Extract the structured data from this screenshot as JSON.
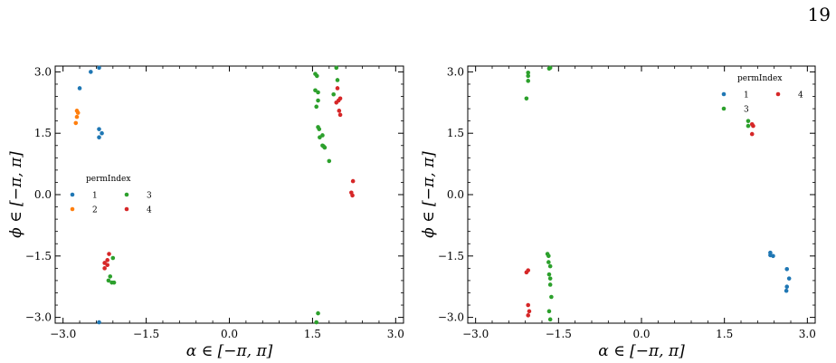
{
  "page": {
    "number": "19"
  },
  "colors": {
    "1": "#1f77b4",
    "2": "#ff7f0e",
    "3": "#2ca02c",
    "4": "#d62728"
  },
  "chart_data": [
    {
      "type": "scatter",
      "xlabel": "α ∈ [−π, π]",
      "ylabel": "ϕ ∈ [−π, π]",
      "xlim": [
        -3.14159,
        3.14159
      ],
      "ylim": [
        -3.14159,
        3.14159
      ],
      "xticks": [
        "−3.0",
        "−1.5",
        "0.0",
        "1.5",
        "3.0"
      ],
      "yticks": [
        "3.0",
        "1.5",
        "0.0",
        "−1.5",
        "−3.0"
      ],
      "legend": {
        "title": "permIndex",
        "placement": "center-left",
        "entries": [
          "1",
          "2",
          "3",
          "4"
        ]
      },
      "series": [
        {
          "name": "1",
          "points": [
            [
              -2.5,
              3.0
            ],
            [
              -2.35,
              3.1
            ],
            [
              -2.7,
              2.6
            ],
            [
              -2.35,
              1.6
            ],
            [
              -2.3,
              1.5
            ],
            [
              -2.35,
              1.4
            ],
            [
              -2.35,
              -3.12
            ]
          ]
        },
        {
          "name": "2",
          "points": [
            [
              -2.75,
              2.05
            ],
            [
              -2.73,
              2.0
            ],
            [
              -2.75,
              1.9
            ],
            [
              -2.77,
              1.75
            ]
          ]
        },
        {
          "name": "3",
          "points": [
            [
              1.55,
              2.95
            ],
            [
              1.58,
              2.9
            ],
            [
              1.93,
              3.1
            ],
            [
              1.95,
              2.8
            ],
            [
              1.55,
              2.55
            ],
            [
              1.6,
              2.5
            ],
            [
              1.6,
              2.3
            ],
            [
              1.57,
              2.15
            ],
            [
              1.88,
              2.45
            ],
            [
              1.6,
              1.65
            ],
            [
              1.62,
              1.6
            ],
            [
              1.68,
              1.45
            ],
            [
              1.63,
              1.4
            ],
            [
              1.68,
              1.2
            ],
            [
              1.7,
              1.18
            ],
            [
              1.72,
              1.15
            ],
            [
              1.8,
              0.82
            ],
            [
              -2.1,
              -1.55
            ],
            [
              -2.15,
              -2.0
            ],
            [
              -2.18,
              -2.1
            ],
            [
              -2.12,
              -2.15
            ],
            [
              -2.08,
              -2.15
            ],
            [
              1.6,
              -2.9
            ],
            [
              1.57,
              -3.12
            ]
          ]
        },
        {
          "name": "4",
          "points": [
            [
              1.95,
              2.6
            ],
            [
              2.0,
              2.35
            ],
            [
              1.97,
              2.3
            ],
            [
              1.93,
              2.25
            ],
            [
              1.98,
              2.05
            ],
            [
              2.0,
              1.95
            ],
            [
              2.23,
              0.33
            ],
            [
              2.2,
              0.05
            ],
            [
              2.22,
              -0.02
            ],
            [
              -2.17,
              -1.45
            ],
            [
              -2.2,
              -1.6
            ],
            [
              -2.25,
              -1.67
            ],
            [
              -2.2,
              -1.72
            ],
            [
              -2.25,
              -1.8
            ]
          ]
        }
      ]
    },
    {
      "type": "scatter",
      "xlabel": "α ∈ [−π, π]",
      "ylabel": "ϕ ∈ [−π, π]",
      "xlim": [
        -3.14159,
        3.14159
      ],
      "ylim": [
        -3.14159,
        3.14159
      ],
      "xticks": [
        "−3.0",
        "−1.5",
        "0.0",
        "1.5",
        "3.0"
      ],
      "yticks": [
        "3.0",
        "1.5",
        "0.0",
        "−1.5",
        "−3.0"
      ],
      "legend": {
        "title": "permIndex",
        "placement": "top-right",
        "entries": [
          "1",
          "3",
          "4"
        ]
      },
      "series": [
        {
          "name": "1",
          "points": [
            [
              2.33,
              -1.42
            ],
            [
              2.38,
              -1.5
            ],
            [
              2.33,
              -1.48
            ],
            [
              2.63,
              -1.82
            ],
            [
              2.67,
              -2.05
            ],
            [
              2.63,
              -2.25
            ],
            [
              2.62,
              -2.35
            ]
          ]
        },
        {
          "name": "3",
          "points": [
            [
              -2.05,
              2.98
            ],
            [
              -2.05,
              2.9
            ],
            [
              -2.05,
              2.78
            ],
            [
              -2.08,
              2.35
            ],
            [
              -1.67,
              3.08
            ],
            [
              -1.65,
              3.1
            ],
            [
              1.93,
              1.8
            ],
            [
              1.93,
              1.68
            ],
            [
              -1.7,
              -1.45
            ],
            [
              -1.68,
              -1.5
            ],
            [
              -1.68,
              -1.65
            ],
            [
              -1.65,
              -1.75
            ],
            [
              -1.67,
              -1.95
            ],
            [
              -1.65,
              -2.05
            ],
            [
              -1.65,
              -2.2
            ],
            [
              -1.63,
              -2.5
            ],
            [
              -1.67,
              -2.85
            ],
            [
              -1.65,
              -3.05
            ]
          ]
        },
        {
          "name": "4",
          "points": [
            [
              2.0,
              1.72
            ],
            [
              2.02,
              1.68
            ],
            [
              2.0,
              1.48
            ],
            [
              -2.05,
              -1.85
            ],
            [
              -2.08,
              -1.9
            ],
            [
              -2.05,
              -2.7
            ],
            [
              -2.03,
              -2.85
            ],
            [
              -2.05,
              -2.95
            ]
          ]
        }
      ]
    }
  ]
}
